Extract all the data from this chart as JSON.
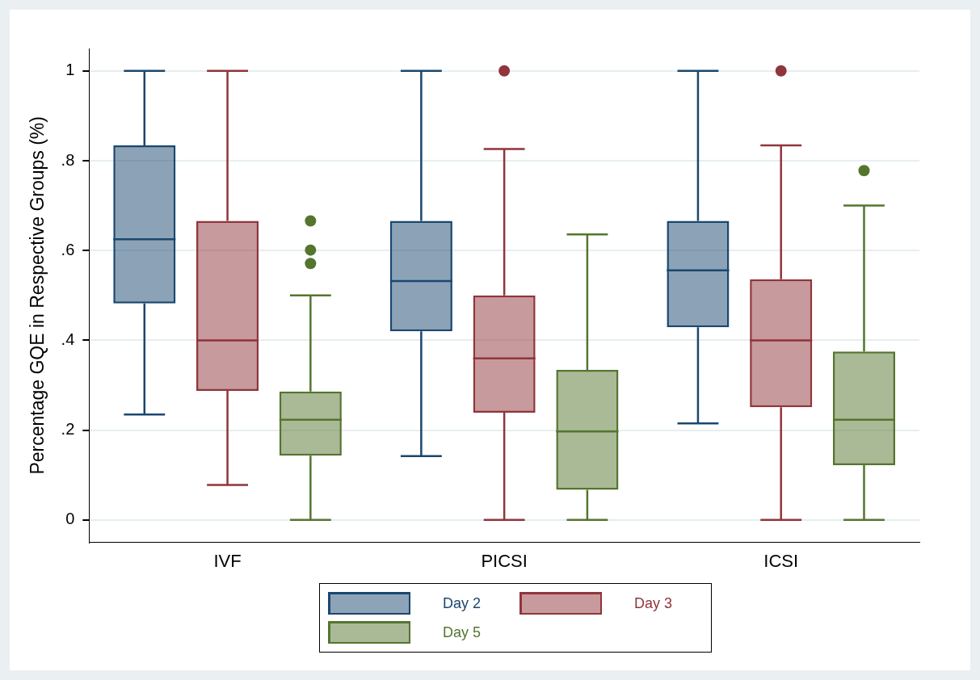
{
  "chart_data": {
    "type": "box",
    "ylabel": "Percentage GQE in Respective Groups (%)",
    "categories": [
      "IVF",
      "PICSI",
      "ICSI"
    ],
    "ylim": [
      -0.05,
      1.05
    ],
    "yticks": [
      0,
      {
        "value": 0.2,
        "label": ".2"
      },
      {
        "value": 0.4,
        "label": ".4"
      },
      {
        "value": 0.6,
        "label": ".6"
      },
      {
        "value": 0.8,
        "label": ".8"
      },
      1
    ],
    "grid": "y",
    "legend": "bottom",
    "series": [
      {
        "name": "Day 2",
        "color": "#1a476f",
        "boxes": [
          {
            "low": 0.235,
            "q1": 0.482,
            "median": 0.625,
            "q3": 0.834,
            "high": 1
          },
          {
            "low": 0.142,
            "q1": 0.42,
            "median": 0.532,
            "q3": 0.666,
            "high": 1
          },
          {
            "low": 0.215,
            "q1": 0.429,
            "median": 0.556,
            "q3": 0.666,
            "high": 1
          }
        ]
      },
      {
        "name": "Day 3",
        "color": "#90353b",
        "boxes": [
          {
            "low": 0.078,
            "q1": 0.2875,
            "median": 0.4,
            "q3": 0.666,
            "high": 1
          },
          {
            "low": 0,
            "q1": 0.239,
            "median": 0.36,
            "q3": 0.5,
            "high": 0.826,
            "outliers": [
              1
            ]
          },
          {
            "low": 0,
            "q1": 0.251,
            "median": 0.4,
            "q3": 0.536,
            "high": 0.834,
            "outliers": [
              1
            ]
          }
        ]
      },
      {
        "name": "Day 5",
        "color": "#55752f",
        "boxes": [
          {
            "low": 0,
            "q1": 0.143,
            "median": 0.223,
            "q3": 0.286,
            "high": 0.5,
            "outliers": [
              0.666,
              0.601,
              0.571
            ]
          },
          {
            "low": 0,
            "q1": 0.067,
            "median": 0.197,
            "q3": 0.334,
            "high": 0.636
          },
          {
            "low": 0,
            "q1": 0.122,
            "median": 0.223,
            "q3": 0.375,
            "high": 0.7,
            "outliers": [
              0.778
            ]
          }
        ]
      }
    ]
  }
}
